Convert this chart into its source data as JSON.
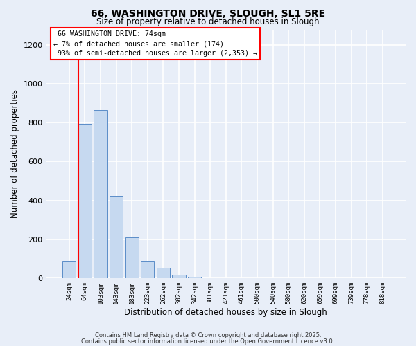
{
  "title": "66, WASHINGTON DRIVE, SLOUGH, SL1 5RE",
  "subtitle": "Size of property relative to detached houses in Slough",
  "xlabel": "Distribution of detached houses by size in Slough",
  "ylabel": "Number of detached properties",
  "bar_labels": [
    "24sqm",
    "64sqm",
    "103sqm",
    "143sqm",
    "183sqm",
    "223sqm",
    "262sqm",
    "302sqm",
    "342sqm",
    "381sqm",
    "421sqm",
    "461sqm",
    "500sqm",
    "540sqm",
    "580sqm",
    "620sqm",
    "659sqm",
    "699sqm",
    "739sqm",
    "778sqm",
    "818sqm"
  ],
  "bar_values": [
    90,
    795,
    865,
    425,
    210,
    90,
    52,
    18,
    5,
    1,
    0,
    0,
    0,
    0,
    0,
    0,
    0,
    0,
    0,
    0,
    0
  ],
  "bar_color": "#c6d9f0",
  "bar_edgecolor": "#5b8dc8",
  "background_color": "#e8eef8",
  "grid_color": "#ffffff",
  "ylim": [
    0,
    1280
  ],
  "yticks": [
    0,
    200,
    400,
    600,
    800,
    1000,
    1200
  ],
  "property_label": "66 WASHINGTON DRIVE: 74sqm",
  "pct_smaller": 7,
  "n_smaller": 174,
  "pct_larger_semi": 93,
  "n_larger_semi": 2353,
  "vline_bin": 1,
  "footer_line1": "Contains HM Land Registry data © Crown copyright and database right 2025.",
  "footer_line2": "Contains public sector information licensed under the Open Government Licence v3.0."
}
